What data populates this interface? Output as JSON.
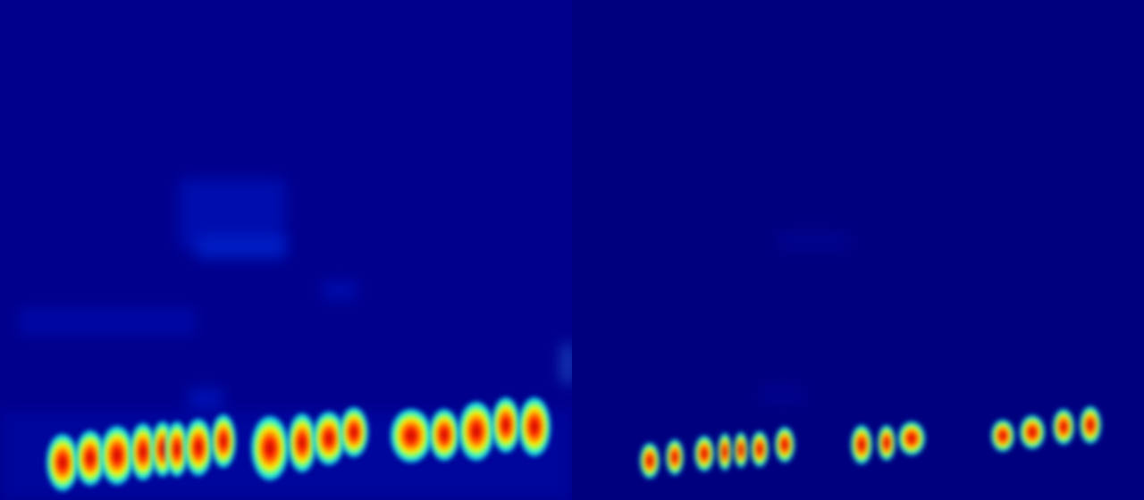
{
  "image": {
    "description_type": "heatmap-overlay",
    "colormap": "jet",
    "background_color": "#00007f",
    "panels": [
      {
        "name": "left-heatmap",
        "groups": 3,
        "peak_counts": [
          8,
          4,
          5
        ]
      },
      {
        "name": "right-heatmap",
        "groups": 3,
        "peak_counts": [
          7,
          3,
          4
        ]
      }
    ]
  }
}
